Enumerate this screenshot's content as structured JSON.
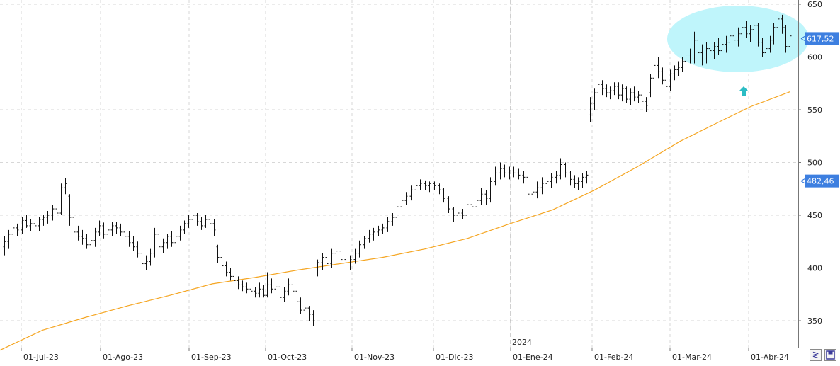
{
  "chart_data": {
    "type": "ohlc",
    "y_axis": {
      "position": "right",
      "ylim": [
        327,
        652
      ],
      "ticks": [
        350,
        400,
        450,
        500,
        550,
        600,
        650
      ]
    },
    "x_axis": {
      "tick_labels": [
        "01-Jul-23",
        "01-Ago-23",
        "01-Sep-23",
        "01-Oct-23",
        "01-Nov-23",
        "01-Dic-23",
        "01-Ene-24",
        "01-Feb-24",
        "01-Mar-24",
        "01-Abr-24"
      ],
      "year_marker": "2024"
    },
    "grid": true,
    "price_bars": [
      [
        420,
        430,
        412,
        425
      ],
      [
        425,
        436,
        418,
        432
      ],
      [
        432,
        440,
        425,
        438
      ],
      [
        438,
        442,
        430,
        436
      ],
      [
        436,
        448,
        432,
        445
      ],
      [
        445,
        450,
        438,
        440
      ],
      [
        440,
        446,
        435,
        442
      ],
      [
        442,
        445,
        436,
        440
      ],
      [
        440,
        448,
        435,
        446
      ],
      [
        446,
        450,
        440,
        448
      ],
      [
        448,
        454,
        442,
        450
      ],
      [
        450,
        460,
        445,
        456
      ],
      [
        456,
        460,
        448,
        452
      ],
      [
        452,
        480,
        450,
        476
      ],
      [
        476,
        485,
        470,
        480
      ],
      [
        468,
        470,
        440,
        448
      ],
      [
        448,
        452,
        430,
        434
      ],
      [
        434,
        440,
        426,
        430
      ],
      [
        430,
        436,
        422,
        428
      ],
      [
        428,
        432,
        418,
        422
      ],
      [
        422,
        432,
        414,
        426
      ],
      [
        426,
        438,
        420,
        434
      ],
      [
        434,
        445,
        430,
        440
      ],
      [
        440,
        443,
        428,
        432
      ],
      [
        432,
        440,
        426,
        436
      ],
      [
        436,
        444,
        430,
        440
      ],
      [
        440,
        444,
        432,
        438
      ],
      [
        438,
        442,
        430,
        434
      ],
      [
        434,
        440,
        426,
        430
      ],
      [
        430,
        435,
        420,
        424
      ],
      [
        424,
        430,
        416,
        420
      ],
      [
        420,
        425,
        410,
        414
      ],
      [
        414,
        420,
        400,
        404
      ],
      [
        404,
        412,
        398,
        406
      ],
      [
        406,
        418,
        402,
        414
      ],
      [
        414,
        438,
        410,
        432
      ],
      [
        432,
        435,
        416,
        420
      ],
      [
        420,
        428,
        414,
        424
      ],
      [
        424,
        432,
        418,
        430
      ],
      [
        430,
        435,
        420,
        424
      ],
      [
        424,
        436,
        420,
        430
      ],
      [
        430,
        440,
        426,
        436
      ],
      [
        436,
        445,
        432,
        442
      ],
      [
        442,
        450,
        438,
        446
      ],
      [
        446,
        455,
        442,
        450
      ],
      [
        450,
        452,
        440,
        444
      ],
      [
        444,
        448,
        436,
        440
      ],
      [
        440,
        450,
        438,
        446
      ],
      [
        446,
        450,
        436,
        442
      ],
      [
        442,
        446,
        430,
        436
      ],
      [
        420,
        422,
        405,
        410
      ],
      [
        410,
        414,
        398,
        402
      ],
      [
        402,
        406,
        392,
        396
      ],
      [
        396,
        400,
        388,
        392
      ],
      [
        392,
        396,
        384,
        388
      ],
      [
        388,
        392,
        380,
        384
      ],
      [
        384,
        388,
        378,
        382
      ],
      [
        382,
        386,
        376,
        380
      ],
      [
        380,
        384,
        374,
        378
      ],
      [
        378,
        382,
        372,
        376
      ],
      [
        376,
        386,
        372,
        380
      ],
      [
        380,
        384,
        372,
        374
      ],
      [
        374,
        396,
        372,
        384
      ],
      [
        384,
        390,
        376,
        380
      ],
      [
        380,
        386,
        374,
        382
      ],
      [
        382,
        388,
        368,
        372
      ],
      [
        372,
        382,
        368,
        378
      ],
      [
        378,
        390,
        374,
        384
      ],
      [
        384,
        388,
        374,
        378
      ],
      [
        378,
        382,
        364,
        368
      ],
      [
        368,
        372,
        356,
        360
      ],
      [
        360,
        366,
        352,
        362
      ],
      [
        362,
        364,
        350,
        356
      ],
      [
        356,
        360,
        345,
        350
      ],
      [
        400,
        408,
        392,
        405
      ],
      [
        405,
        414,
        398,
        410
      ],
      [
        410,
        416,
        402,
        404
      ],
      [
        404,
        418,
        400,
        414
      ],
      [
        414,
        422,
        408,
        416
      ],
      [
        416,
        420,
        404,
        408
      ],
      [
        408,
        414,
        396,
        400
      ],
      [
        400,
        412,
        398,
        408
      ],
      [
        408,
        418,
        404,
        414
      ],
      [
        414,
        426,
        410,
        422
      ],
      [
        422,
        430,
        418,
        428
      ],
      [
        428,
        436,
        424,
        432
      ],
      [
        432,
        438,
        426,
        434
      ],
      [
        434,
        440,
        430,
        436
      ],
      [
        436,
        442,
        432,
        438
      ],
      [
        438,
        448,
        434,
        444
      ],
      [
        444,
        452,
        440,
        448
      ],
      [
        448,
        462,
        444,
        458
      ],
      [
        458,
        468,
        454,
        464
      ],
      [
        464,
        472,
        460,
        468
      ],
      [
        468,
        478,
        464,
        474
      ],
      [
        474,
        482,
        470,
        478
      ],
      [
        478,
        484,
        474,
        480
      ],
      [
        480,
        483,
        474,
        478
      ],
      [
        478,
        482,
        472,
        480
      ],
      [
        480,
        482,
        474,
        478
      ],
      [
        478,
        480,
        470,
        474
      ],
      [
        474,
        476,
        462,
        466
      ],
      [
        466,
        468,
        452,
        456
      ],
      [
        456,
        458,
        444,
        450
      ],
      [
        450,
        454,
        446,
        452
      ],
      [
        452,
        456,
        446,
        450
      ],
      [
        450,
        464,
        446,
        460
      ],
      [
        460,
        466,
        452,
        458
      ],
      [
        458,
        468,
        454,
        464
      ],
      [
        464,
        476,
        460,
        470
      ],
      [
        470,
        474,
        460,
        466
      ],
      [
        466,
        486,
        462,
        482
      ],
      [
        482,
        496,
        478,
        490
      ],
      [
        490,
        500,
        484,
        494
      ],
      [
        494,
        498,
        486,
        490
      ],
      [
        490,
        496,
        484,
        492
      ],
      [
        492,
        496,
        486,
        490
      ],
      [
        490,
        494,
        484,
        488
      ],
      [
        488,
        492,
        480,
        486
      ],
      [
        486,
        488,
        462,
        470
      ],
      [
        470,
        478,
        464,
        472
      ],
      [
        472,
        482,
        466,
        476
      ],
      [
        476,
        486,
        470,
        480
      ],
      [
        480,
        488,
        474,
        482
      ],
      [
        482,
        490,
        476,
        486
      ],
      [
        486,
        492,
        480,
        488
      ],
      [
        488,
        504,
        484,
        498
      ],
      [
        498,
        500,
        486,
        490
      ],
      [
        490,
        492,
        478,
        484
      ],
      [
        484,
        488,
        476,
        480
      ],
      [
        480,
        486,
        474,
        482
      ],
      [
        482,
        490,
        476,
        486
      ],
      [
        486,
        492,
        480,
        488
      ],
      [
        545,
        562,
        538,
        556
      ],
      [
        556,
        570,
        550,
        566
      ],
      [
        566,
        580,
        560,
        574
      ],
      [
        574,
        578,
        564,
        570
      ],
      [
        570,
        574,
        562,
        566
      ],
      [
        566,
        572,
        560,
        568
      ],
      [
        568,
        576,
        564,
        572
      ],
      [
        572,
        576,
        560,
        564
      ],
      [
        564,
        574,
        558,
        570
      ],
      [
        570,
        572,
        556,
        560
      ],
      [
        560,
        570,
        554,
        566
      ],
      [
        566,
        572,
        558,
        562
      ],
      [
        562,
        568,
        556,
        564
      ],
      [
        564,
        570,
        556,
        558
      ],
      [
        558,
        562,
        548,
        554
      ],
      [
        566,
        584,
        562,
        580
      ],
      [
        580,
        598,
        576,
        592
      ],
      [
        592,
        600,
        580,
        586
      ],
      [
        586,
        590,
        574,
        578
      ],
      [
        578,
        584,
        566,
        572
      ],
      [
        572,
        588,
        568,
        584
      ],
      [
        584,
        592,
        578,
        588
      ],
      [
        588,
        596,
        582,
        590
      ],
      [
        590,
        600,
        586,
        596
      ],
      [
        596,
        606,
        590,
        602
      ],
      [
        602,
        608,
        594,
        598
      ],
      [
        598,
        624,
        594,
        616
      ],
      [
        616,
        620,
        598,
        604
      ],
      [
        604,
        612,
        592,
        598
      ],
      [
        598,
        614,
        594,
        608
      ],
      [
        608,
        616,
        600,
        606
      ],
      [
        606,
        614,
        598,
        610
      ],
      [
        610,
        618,
        602,
        606
      ],
      [
        606,
        616,
        600,
        612
      ],
      [
        612,
        620,
        604,
        614
      ],
      [
        614,
        624,
        606,
        620
      ],
      [
        620,
        626,
        612,
        616
      ],
      [
        616,
        628,
        610,
        622
      ],
      [
        622,
        632,
        616,
        628
      ],
      [
        628,
        634,
        618,
        622
      ],
      [
        622,
        630,
        614,
        626
      ],
      [
        626,
        634,
        618,
        630
      ],
      [
        630,
        632,
        610,
        614
      ],
      [
        614,
        618,
        600,
        604
      ],
      [
        604,
        612,
        598,
        608
      ],
      [
        608,
        620,
        604,
        616
      ],
      [
        616,
        632,
        612,
        628
      ],
      [
        628,
        640,
        624,
        636
      ],
      [
        636,
        640,
        622,
        628
      ],
      [
        628,
        630,
        604,
        610
      ],
      [
        610,
        624,
        606,
        620
      ],
      [
        620,
        634,
        614,
        630
      ],
      [
        630,
        634,
        610,
        616
      ],
      [
        616,
        620,
        606,
        612
      ]
    ],
    "moving_average": [
      [
        0,
        322
      ],
      [
        60,
        341
      ],
      [
        120,
        353
      ],
      [
        180,
        364
      ],
      [
        240,
        374
      ],
      [
        300,
        385
      ],
      [
        360,
        391
      ],
      [
        420,
        398
      ],
      [
        480,
        404
      ],
      [
        540,
        410
      ],
      [
        600,
        418
      ],
      [
        660,
        428
      ],
      [
        720,
        442
      ],
      [
        780,
        455
      ],
      [
        840,
        474
      ],
      [
        900,
        496
      ],
      [
        960,
        520
      ],
      [
        1020,
        540
      ],
      [
        1060,
        553
      ],
      [
        1115,
        567
      ]
    ],
    "ma_color": "#f5a623",
    "bar_color": "#111111",
    "last_price_label": "617,52",
    "ma_last_label": "482,46",
    "annotation": {
      "shape": "ellipse",
      "fill": "#bff5fb",
      "arrow_color": "#2bbcc4"
    }
  },
  "controls": {
    "scale_icon": "≷",
    "save_icon": "save-icon"
  }
}
